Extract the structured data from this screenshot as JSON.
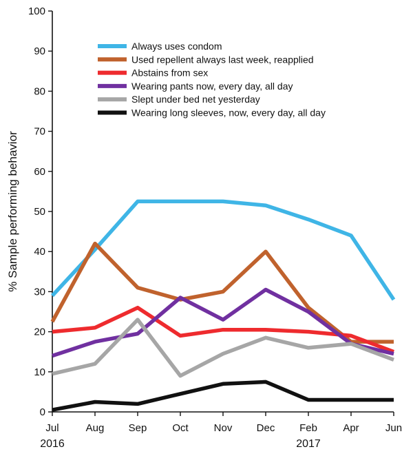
{
  "chart_data": {
    "type": "line",
    "ylabel": "% Sample performing behavior",
    "ylim": [
      0,
      100
    ],
    "yticks": [
      0,
      10,
      20,
      30,
      40,
      50,
      60,
      70,
      80,
      90,
      100
    ],
    "categories": [
      "Jul",
      "Aug",
      "Sep",
      "Oct",
      "Nov",
      "Dec",
      "Feb",
      "Apr",
      "Jun"
    ],
    "year_labels": [
      {
        "text": "2016",
        "category": "Jul"
      },
      {
        "text": "2017",
        "category": "Feb"
      }
    ],
    "grid": false,
    "legend_position": "top-right",
    "series": [
      {
        "name": "Always uses condom",
        "color": "#3fb5e6",
        "values": [
          29,
          40.5,
          52.5,
          52.5,
          52.5,
          51.5,
          48,
          44,
          28
        ]
      },
      {
        "name": "Used repellent always last week, reapplied",
        "color": "#c0622d",
        "values": [
          22.5,
          42,
          31,
          28,
          30,
          40,
          26,
          17.5,
          17.5
        ]
      },
      {
        "name": "Abstains from sex",
        "color": "#ee2b2e",
        "values": [
          20,
          21,
          26,
          19,
          20.5,
          20.5,
          20,
          19,
          15
        ]
      },
      {
        "name": "Wearing pants now, every day, all day",
        "color": "#7030a0",
        "values": [
          14,
          17.5,
          19.5,
          28.5,
          23,
          30.5,
          25,
          17,
          14.5
        ]
      },
      {
        "name": "Slept under bed net yesterday",
        "color": "#a6a6a6",
        "values": [
          9.5,
          12,
          23,
          9,
          14.5,
          18.5,
          16,
          17,
          13
        ]
      },
      {
        "name": "Wearing long sleeves, now, every day, all day",
        "color": "#111111",
        "values": [
          0.5,
          2.5,
          2,
          4.5,
          7,
          7.5,
          3,
          3,
          3
        ]
      }
    ]
  }
}
